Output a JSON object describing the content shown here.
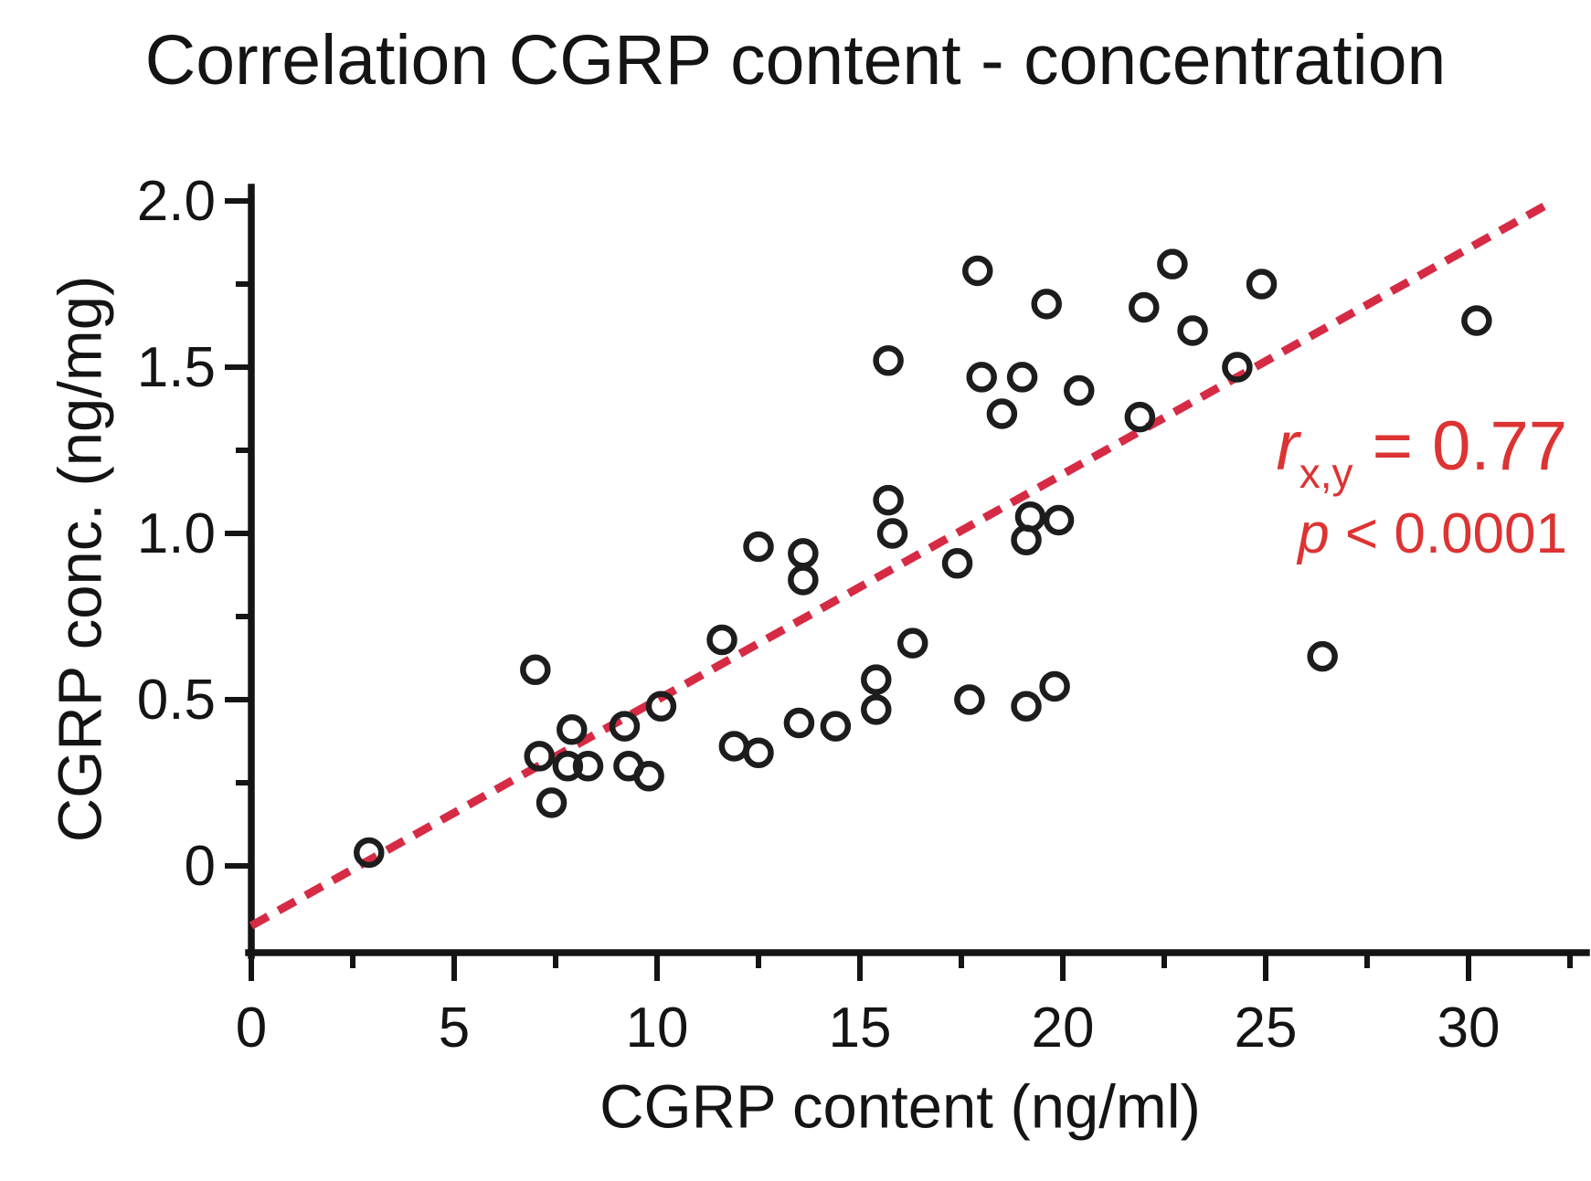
{
  "chart_data": {
    "type": "scatter",
    "title": "Correlation CGRP content - concentration",
    "xlabel": "CGRP content (ng/ml)",
    "ylabel": "CGRP conc. (ng/mg)",
    "xlim": [
      0,
      32.9
    ],
    "ylim": [
      -0.26,
      2.0
    ],
    "grid": false,
    "marker": "open-circle",
    "marker_color": "#1d1d1d",
    "x_ticks": [
      {
        "value": 0,
        "label": "0"
      },
      {
        "value": 5,
        "label": "5"
      },
      {
        "value": 10,
        "label": "10"
      },
      {
        "value": 15,
        "label": "15"
      },
      {
        "value": 20,
        "label": "20"
      },
      {
        "value": 25,
        "label": "25"
      },
      {
        "value": 30,
        "label": "30"
      }
    ],
    "x_minor_ticks": [
      2.5,
      7.5,
      12.5,
      17.5,
      22.5,
      27.5,
      32.5
    ],
    "y_ticks": [
      {
        "value": 0,
        "label": "0"
      },
      {
        "value": 0.5,
        "label": "0.5"
      },
      {
        "value": 1.0,
        "label": "1.0"
      },
      {
        "value": 1.5,
        "label": "1.5"
      },
      {
        "value": 2.0,
        "label": "2.0"
      }
    ],
    "y_minor_ticks": [
      0.25,
      0.75,
      1.25,
      1.75
    ],
    "points": [
      [
        2.9,
        0.04
      ],
      [
        7.0,
        0.59
      ],
      [
        7.1,
        0.33
      ],
      [
        7.4,
        0.19
      ],
      [
        7.8,
        0.3
      ],
      [
        7.9,
        0.41
      ],
      [
        8.3,
        0.3
      ],
      [
        9.2,
        0.42
      ],
      [
        9.3,
        0.3
      ],
      [
        9.8,
        0.27
      ],
      [
        10.1,
        0.48
      ],
      [
        11.6,
        0.68
      ],
      [
        11.9,
        0.36
      ],
      [
        12.5,
        0.34
      ],
      [
        12.5,
        0.96
      ],
      [
        13.5,
        0.43
      ],
      [
        13.6,
        0.86
      ],
      [
        13.6,
        0.94
      ],
      [
        14.4,
        0.42
      ],
      [
        15.4,
        0.47
      ],
      [
        15.4,
        0.56
      ],
      [
        15.7,
        1.1
      ],
      [
        15.7,
        1.52
      ],
      [
        15.8,
        1.0
      ],
      [
        16.3,
        0.67
      ],
      [
        17.4,
        0.91
      ],
      [
        17.7,
        0.5
      ],
      [
        17.9,
        1.79
      ],
      [
        18.0,
        1.47
      ],
      [
        18.5,
        1.36
      ],
      [
        19.0,
        1.47
      ],
      [
        19.1,
        0.48
      ],
      [
        19.1,
        0.98
      ],
      [
        19.2,
        1.05
      ],
      [
        19.6,
        1.69
      ],
      [
        19.8,
        0.54
      ],
      [
        19.9,
        1.04
      ],
      [
        20.4,
        1.43
      ],
      [
        21.9,
        1.35
      ],
      [
        22.0,
        1.68
      ],
      [
        22.7,
        1.81
      ],
      [
        23.2,
        1.61
      ],
      [
        24.3,
        1.5
      ],
      [
        24.9,
        1.75
      ],
      [
        26.4,
        0.63
      ],
      [
        30.2,
        1.64
      ]
    ],
    "trendline": {
      "style": "dashed",
      "color": "#d62b45",
      "x1": 0,
      "y1": -0.18,
      "x2": 32.1,
      "y2": 2.0
    }
  },
  "annotation": {
    "r_symbol": "r",
    "r_subscript": "x,y",
    "r_rest": " = 0.77",
    "p_symbol": "p",
    "p_rest": " < 0.0001",
    "color": "#dd3333"
  }
}
